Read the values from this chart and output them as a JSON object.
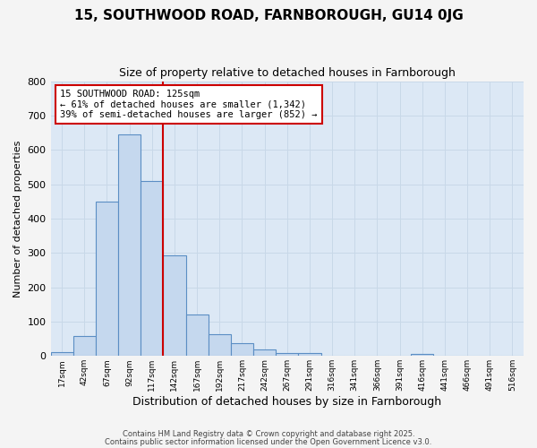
{
  "title1": "15, SOUTHWOOD ROAD, FARNBOROUGH, GU14 0JG",
  "title2": "Size of property relative to detached houses in Farnborough",
  "xlabel": "Distribution of detached houses by size in Farnborough",
  "ylabel": "Number of detached properties",
  "bar_labels": [
    "17sqm",
    "42sqm",
    "67sqm",
    "92sqm",
    "117sqm",
    "142sqm",
    "167sqm",
    "192sqm",
    "217sqm",
    "242sqm",
    "267sqm",
    "291sqm",
    "316sqm",
    "341sqm",
    "366sqm",
    "391sqm",
    "416sqm",
    "441sqm",
    "466sqm",
    "491sqm",
    "516sqm"
  ],
  "bar_heights": [
    10,
    57,
    450,
    645,
    510,
    293,
    121,
    63,
    37,
    20,
    8,
    8,
    0,
    0,
    0,
    0,
    5,
    0,
    0,
    0,
    0
  ],
  "bar_color": "#c5d8ee",
  "bar_edge_color": "#5b8ec4",
  "grid_color": "#c8d8e8",
  "bg_color": "#dce8f5",
  "fig_bg_color": "#f4f4f4",
  "red_line_color": "#cc0000",
  "annotation_line1": "15 SOUTHWOOD ROAD: 125sqm",
  "annotation_line2": "← 61% of detached houses are smaller (1,342)",
  "annotation_line3": "39% of semi-detached houses are larger (852) →",
  "annotation_box_color": "#cc0000",
  "ylim": [
    0,
    800
  ],
  "yticks": [
    0,
    100,
    200,
    300,
    400,
    500,
    600,
    700,
    800
  ],
  "footer1": "Contains HM Land Registry data © Crown copyright and database right 2025.",
  "footer2": "Contains public sector information licensed under the Open Government Licence v3.0.",
  "title1_fontsize": 11,
  "title2_fontsize": 9,
  "xlabel_fontsize": 9,
  "ylabel_fontsize": 8
}
